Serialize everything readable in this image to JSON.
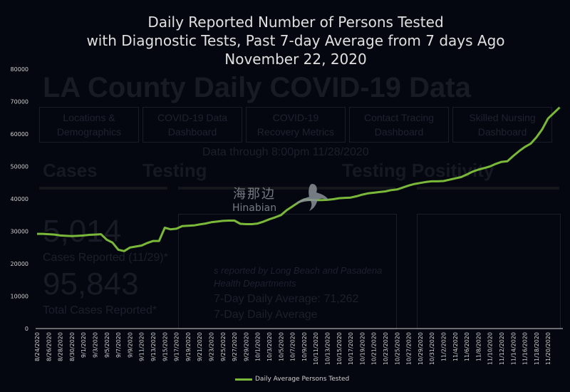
{
  "background_dashboard": {
    "title": "LA County Daily COVID-19 Data",
    "nav": [
      "Locations & Demographics",
      "COVID-19 Data Dashboard",
      "COVID-19 Recovery Metrics",
      "Contact Tracing Dashboard",
      "Skilled Nursing Dashboard"
    ],
    "data_through": "Data through 8:00pm 11/28/2020",
    "sections": [
      "Cases",
      "Testing",
      "Testing Positivity"
    ],
    "new_cases": "5,014",
    "new_cases_label": "Cases Reported (11/29)*",
    "total_cases": "95,843",
    "total_cases_label": "Total Cases Reported*",
    "footnote_1": "s reported by Long Beach and Pasadena",
    "footnote_2": "Health Departments",
    "avg_1": "7-Day Daily Average: 71,262",
    "avg_2": "7-Day Daily Average"
  },
  "watermark": {
    "cn": "海那边",
    "en": "Hinabian"
  },
  "colors": {
    "line": "#7ab83a",
    "background": "#04070f"
  },
  "chart_data": {
    "type": "line",
    "title": [
      "Daily Reported Number of Persons Tested",
      "with Diagnostic Tests, Past 7-day Average from 7 days Ago",
      "November 22, 2020"
    ],
    "xlabel": "",
    "ylabel": "",
    "ylim": [
      0,
      80000
    ],
    "yticks": [
      0,
      10000,
      20000,
      30000,
      40000,
      50000,
      60000,
      70000,
      80000
    ],
    "start_date": "8/24/2020",
    "end_date": "11/22/2020",
    "xtick_labels": [
      "8/24/2020",
      "8/26/2020",
      "8/28/2020",
      "8/30/2020",
      "9/1/2020",
      "9/3/2020",
      "9/5/2020",
      "9/7/2020",
      "9/9/2020",
      "9/11/2020",
      "9/13/2020",
      "9/15/2020",
      "9/17/2020",
      "9/19/2020",
      "9/21/2020",
      "9/23/2020",
      "9/25/2020",
      "9/27/2020",
      "9/29/2020",
      "10/1/2020",
      "10/3/2020",
      "10/5/2020",
      "10/7/2020",
      "10/9/2020",
      "10/11/2020",
      "10/13/2020",
      "10/15/2020",
      "10/17/2020",
      "10/19/2020",
      "10/21/2020",
      "10/23/2020",
      "10/25/2020",
      "10/27/2020",
      "10/29/2020",
      "10/31/2020",
      "11/2/2020",
      "11/4/2020",
      "11/6/2020",
      "11/8/2020",
      "11/10/2020",
      "11/12/2020",
      "11/14/2020",
      "11/16/2020",
      "11/18/2020",
      "11/20/2020"
    ],
    "grid": false,
    "legend_position": "bottom-center",
    "series": [
      {
        "name": "Daily Average Persons Tested",
        "values": [
          29200,
          29200,
          29100,
          29000,
          28700,
          28600,
          28500,
          28600,
          28700,
          28900,
          29000,
          29100,
          27400,
          26500,
          24300,
          23900,
          25000,
          25300,
          25600,
          26400,
          27000,
          27000,
          31100,
          30600,
          30800,
          31600,
          31700,
          31800,
          32100,
          32400,
          32800,
          33000,
          33200,
          33300,
          33300,
          32300,
          32200,
          32200,
          32400,
          33000,
          33700,
          34300,
          35000,
          36500,
          37700,
          38900,
          39800,
          39700,
          39600,
          39600,
          39700,
          39900,
          40200,
          40300,
          40400,
          40800,
          41300,
          41700,
          41900,
          42100,
          42300,
          42700,
          42900,
          43500,
          44100,
          44600,
          44900,
          45200,
          45400,
          45400,
          45500,
          45900,
          46300,
          46700,
          47500,
          48400,
          49000,
          49500,
          50000,
          50800,
          51400,
          51600,
          53200,
          54700,
          56000,
          57000,
          59000,
          61500,
          64800,
          66500,
          68200
        ]
      }
    ]
  }
}
